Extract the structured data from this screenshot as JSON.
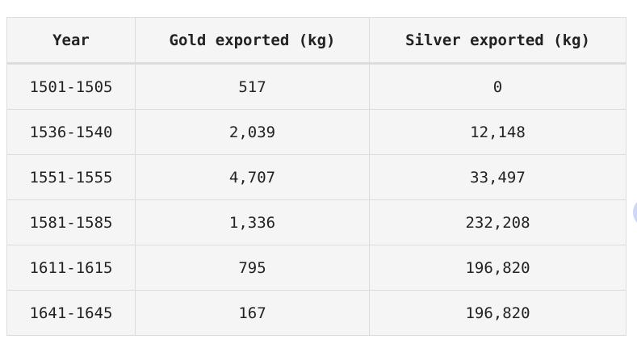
{
  "table": {
    "headers": [
      "Year",
      "Gold exported (kg)",
      "Silver exported (kg)"
    ],
    "rows": [
      [
        "1501-1505",
        "517",
        "0"
      ],
      [
        "1536-1540",
        "2,039",
        "12,148"
      ],
      [
        "1551-1555",
        "4,707",
        "33,497"
      ],
      [
        "1581-1585",
        "1,336",
        "232,208"
      ],
      [
        "1611-1615",
        "795",
        "196,820"
      ],
      [
        "1641-1645",
        "167",
        "196,820"
      ]
    ]
  },
  "colors": {
    "table_background": "#f5f5f5",
    "border": "#dddddd",
    "text": "#222222",
    "side_button": "#cdd8f6"
  }
}
